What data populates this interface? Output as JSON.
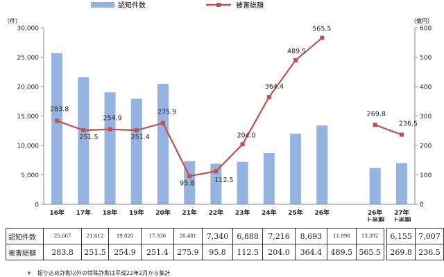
{
  "chart_data": {
    "type": "bar",
    "categories": [
      "16年",
      "17年",
      "18年",
      "19年",
      "20年",
      "21年",
      "22年",
      "23年",
      "24年",
      "25年",
      "26年",
      "",
      "26年\n上半期",
      "27年\n上半期"
    ],
    "series": [
      {
        "name": "認知件数",
        "type": "bar",
        "axis": "left",
        "color": "#95B3E0",
        "values": [
          25667,
          21612,
          19020,
          17930,
          20481,
          7340,
          6888,
          7216,
          8693,
          11998,
          13392,
          null,
          6155,
          7007
        ]
      },
      {
        "name": "被害総額",
        "type": "line",
        "axis": "right",
        "color": "#C0504D",
        "values": [
          283.8,
          251.5,
          254.9,
          251.4,
          275.9,
          95.8,
          112.5,
          204.0,
          364.4,
          489.5,
          565.5,
          null,
          269.8,
          236.5
        ],
        "labels": [
          "283.8",
          "251.5",
          "254.9",
          "251.4",
          "275.9",
          "95.8",
          "112.5",
          "204.0",
          "364.4",
          "489.5",
          "565.5",
          "",
          "269.8",
          "236.5"
        ]
      }
    ],
    "yleft": {
      "unit": "（件）",
      "range": [
        0,
        30000
      ],
      "ticks": [
        "0",
        "5,000",
        "10,000",
        "15,000",
        "20,000",
        "25,000",
        "30,000"
      ]
    },
    "yright": {
      "unit": "（億円）",
      "range": [
        0,
        600
      ],
      "ticks": [
        "0",
        "100",
        "200",
        "300",
        "400",
        "500",
        "600"
      ]
    },
    "grid": false,
    "legend": "top"
  },
  "table": {
    "rows": [
      {
        "label": "認知件数",
        "cells": [
          "25,667",
          "21,612",
          "19,020",
          "17,930",
          "20,481",
          "7,340",
          "6,888",
          "7,216",
          "8,693",
          "11,998",
          "13,392"
        ],
        "extra": [
          "6,155",
          "7,007"
        ]
      },
      {
        "label": "被害総額",
        "cells": [
          "283.8",
          "251.5",
          "254.9",
          "251.4",
          "275.9",
          "95.8",
          "112.5",
          "204.0",
          "364.4",
          "489.5",
          "565.5"
        ],
        "extra": [
          "269.8",
          "236.5"
        ]
      }
    ]
  },
  "note": "＊　振り込め詐欺以外の特殊詐欺は平成22年2月から集計"
}
